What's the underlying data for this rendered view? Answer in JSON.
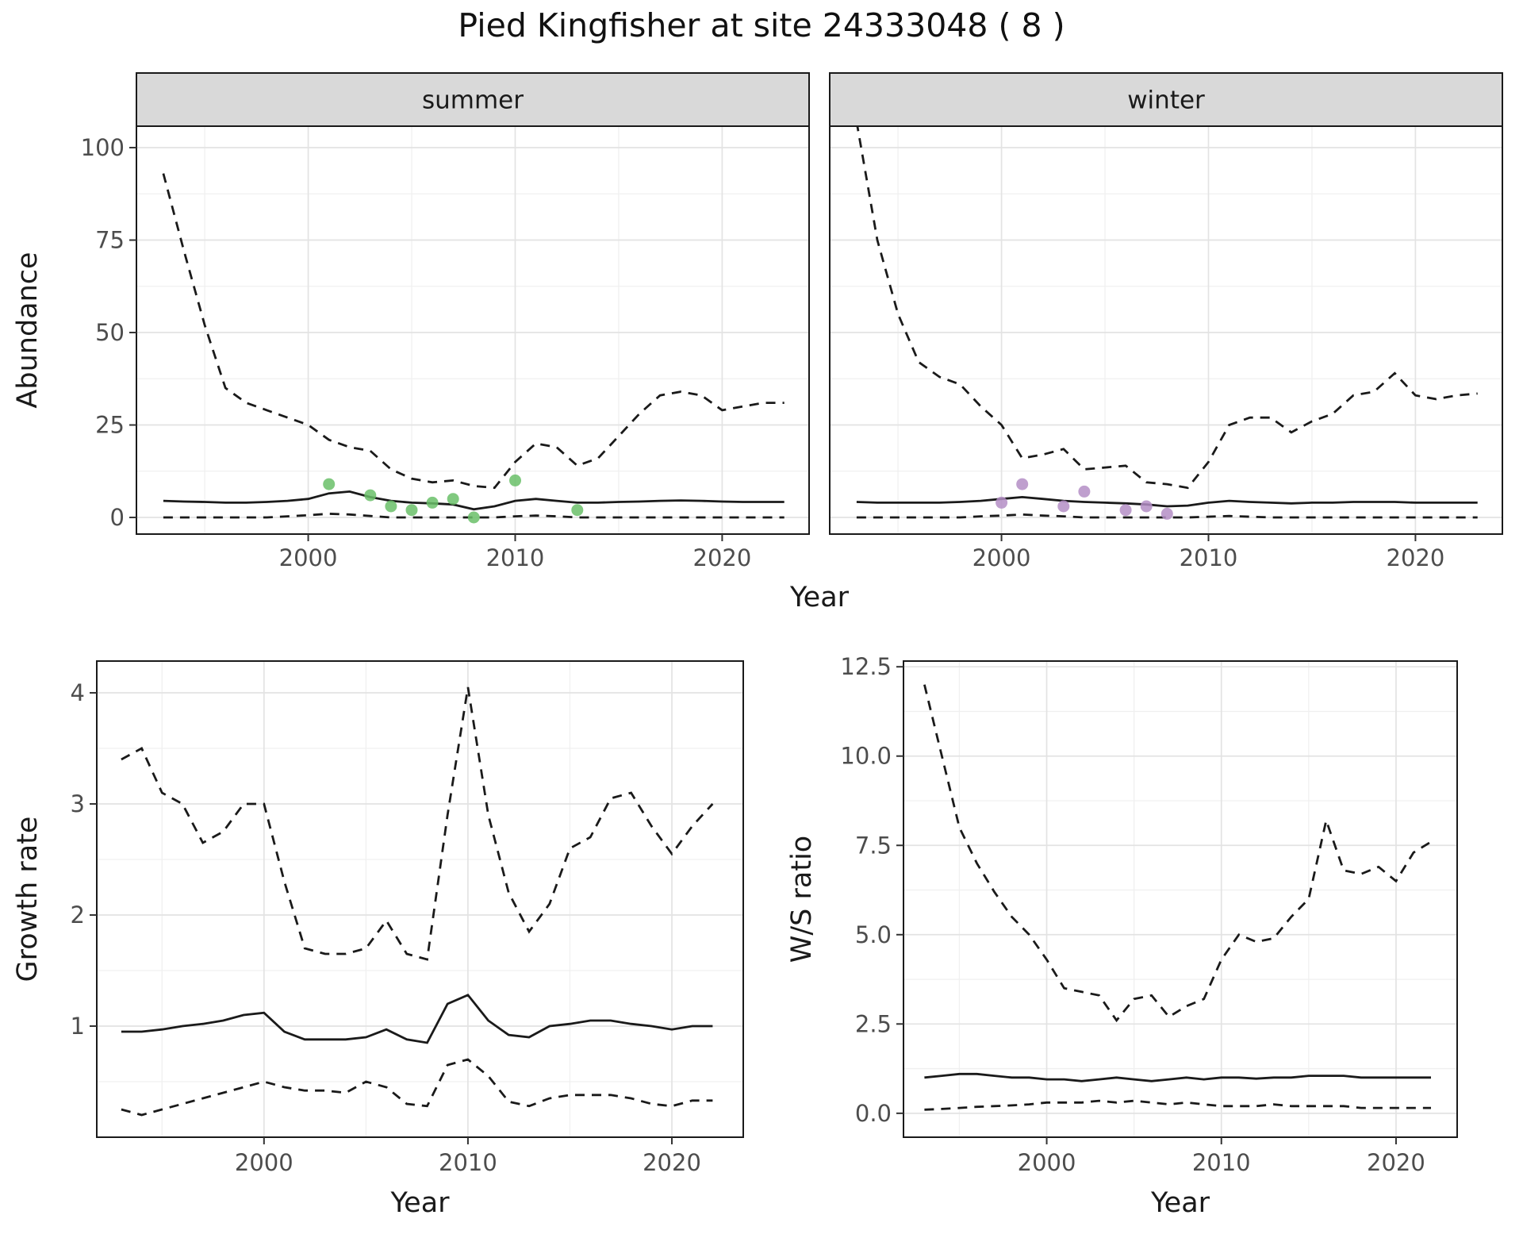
{
  "title": "Pied Kingfisher at site 24333048 ( 8 )",
  "colors": {
    "summer_points": "#6abf69",
    "winter_points": "#b48ec6",
    "line": "#1a1a1a",
    "strip_background": "#d9d9d9",
    "grid_major": "#e3e3e3",
    "grid_minor": "#f0f0f0",
    "tick_text": "#4d4d4d"
  },
  "chart_data": [
    {
      "id": "abundance_by_season",
      "type": "line",
      "xlabel": "Year",
      "ylabel": "Abundance",
      "x_ticks": [
        "2000",
        "2010",
        "2020"
      ],
      "x_tick_values": [
        2000,
        2010,
        2020
      ],
      "y_ticks": [
        "0",
        "25",
        "50",
        "75",
        "100"
      ],
      "y_tick_values": [
        0,
        25,
        50,
        75,
        100
      ],
      "xlim": [
        1991.7,
        2024.2
      ],
      "ylim": [
        -4.5,
        105.8
      ],
      "x": [
        1993,
        1994,
        1995,
        1996,
        1997,
        1998,
        1999,
        2000,
        2001,
        2002,
        2003,
        2004,
        2005,
        2006,
        2007,
        2008,
        2009,
        2010,
        2011,
        2012,
        2013,
        2014,
        2015,
        2016,
        2017,
        2018,
        2019,
        2020,
        2021,
        2022,
        2023
      ],
      "panels": [
        {
          "facet": "summer",
          "point_color": "#6abf69",
          "upper": [
            93,
            72,
            52,
            35,
            31,
            29,
            27,
            25,
            21,
            19,
            18,
            13,
            10.5,
            9.5,
            10,
            8.5,
            8,
            15,
            20,
            19,
            14,
            16,
            22,
            28,
            33,
            34,
            33,
            29,
            30,
            31,
            31
          ],
          "median": [
            4.5,
            4.3,
            4.2,
            4.0,
            4.0,
            4.2,
            4.5,
            5.0,
            6.5,
            7.0,
            5.5,
            4.5,
            4.0,
            3.8,
            3.5,
            2.2,
            3.0,
            4.5,
            5.0,
            4.5,
            4.0,
            4.0,
            4.2,
            4.3,
            4.5,
            4.6,
            4.5,
            4.3,
            4.2,
            4.2,
            4.2
          ],
          "lower": [
            0,
            0,
            0,
            0,
            0,
            0,
            0.3,
            0.6,
            1,
            0.8,
            0.4,
            0,
            0,
            0,
            0,
            0,
            0,
            0.3,
            0.5,
            0.3,
            0,
            0,
            0,
            0,
            0,
            0,
            0,
            0,
            0,
            0,
            0
          ],
          "points": [
            [
              2001,
              9
            ],
            [
              2003,
              6
            ],
            [
              2004,
              3
            ],
            [
              2005,
              2
            ],
            [
              2006,
              4
            ],
            [
              2007,
              5
            ],
            [
              2008,
              0
            ],
            [
              2010,
              10
            ],
            [
              2013,
              2
            ]
          ]
        },
        {
          "facet": "winter",
          "point_color": "#b48ec6",
          "upper": [
            107,
            75,
            55,
            42,
            38,
            36,
            30,
            25,
            16,
            17,
            18.5,
            13,
            13.5,
            14,
            9.5,
            9,
            8,
            15,
            25,
            27,
            27,
            23,
            26,
            28,
            33,
            34,
            39,
            33,
            32,
            33,
            33.5
          ],
          "median": [
            4.2,
            4.0,
            4.0,
            4.0,
            4.0,
            4.2,
            4.5,
            5.0,
            5.5,
            5.0,
            4.5,
            4.2,
            4.0,
            3.8,
            3.5,
            3.0,
            3.2,
            4.0,
            4.5,
            4.2,
            4.0,
            3.8,
            4.0,
            4.0,
            4.2,
            4.2,
            4.2,
            4.0,
            4.0,
            4.0,
            4.0
          ],
          "lower": [
            0,
            0,
            0,
            0,
            0,
            0,
            0.3,
            0.5,
            0.8,
            0.5,
            0.3,
            0,
            0,
            0,
            0,
            0,
            0,
            0.2,
            0.4,
            0.2,
            0,
            0,
            0,
            0,
            0,
            0,
            0,
            0,
            0,
            0,
            0
          ],
          "points": [
            [
              2000,
              4
            ],
            [
              2001,
              9
            ],
            [
              2003,
              3
            ],
            [
              2004,
              7
            ],
            [
              2006,
              2
            ],
            [
              2007,
              3
            ],
            [
              2008,
              1
            ]
          ]
        }
      ]
    },
    {
      "id": "growth_rate",
      "type": "line",
      "xlabel": "Year",
      "ylabel": "Growth rate",
      "x_ticks": [
        "2000",
        "2010",
        "2020"
      ],
      "x_tick_values": [
        2000,
        2010,
        2020
      ],
      "y_ticks": [
        "1",
        "2",
        "3",
        "4"
      ],
      "y_tick_values": [
        1,
        2,
        3,
        4
      ],
      "xlim": [
        1991.8,
        2023.5
      ],
      "ylim": [
        0,
        4.286
      ],
      "x": [
        1993,
        1994,
        1995,
        1996,
        1997,
        1998,
        1999,
        2000,
        2001,
        2002,
        2003,
        2004,
        2005,
        2006,
        2007,
        2008,
        2009,
        2010,
        2011,
        2012,
        2013,
        2014,
        2015,
        2016,
        2017,
        2018,
        2019,
        2020,
        2021,
        2022
      ],
      "panels": [
        {
          "facet": null,
          "point_color": null,
          "upper": [
            3.4,
            3.5,
            3.1,
            3.0,
            2.65,
            2.75,
            3.0,
            3.0,
            2.3,
            1.7,
            1.65,
            1.65,
            1.7,
            1.95,
            1.65,
            1.6,
            2.9,
            4.05,
            2.9,
            2.2,
            1.85,
            2.1,
            2.6,
            2.7,
            3.05,
            3.1,
            2.8,
            2.55,
            2.8,
            3.0
          ],
          "median": [
            0.95,
            0.95,
            0.97,
            1.0,
            1.02,
            1.05,
            1.1,
            1.12,
            0.95,
            0.88,
            0.88,
            0.88,
            0.9,
            0.97,
            0.88,
            0.85,
            1.2,
            1.28,
            1.05,
            0.92,
            0.9,
            1.0,
            1.02,
            1.05,
            1.05,
            1.02,
            1.0,
            0.97,
            1.0,
            1.0
          ],
          "lower": [
            0.25,
            0.2,
            0.25,
            0.3,
            0.35,
            0.4,
            0.45,
            0.5,
            0.45,
            0.42,
            0.42,
            0.4,
            0.5,
            0.45,
            0.3,
            0.28,
            0.65,
            0.7,
            0.55,
            0.32,
            0.28,
            0.35,
            0.38,
            0.38,
            0.38,
            0.35,
            0.3,
            0.28,
            0.33,
            0.33
          ],
          "points": []
        }
      ]
    },
    {
      "id": "ws_ratio",
      "type": "line",
      "xlabel": "Year",
      "ylabel": "W/S ratio",
      "x_ticks": [
        "2000",
        "2010",
        "2020"
      ],
      "x_tick_values": [
        2000,
        2010,
        2020
      ],
      "y_ticks": [
        "0.0",
        "2.5",
        "5.0",
        "7.5",
        "10.0",
        "12.5"
      ],
      "y_tick_values": [
        0,
        2.5,
        5,
        7.5,
        10,
        12.5
      ],
      "xlim": [
        1991.8,
        2023.5
      ],
      "ylim": [
        -0.67,
        12.66
      ],
      "x": [
        1993,
        1994,
        1995,
        1996,
        1997,
        1998,
        1999,
        2000,
        2001,
        2002,
        2003,
        2004,
        2005,
        2006,
        2007,
        2008,
        2009,
        2010,
        2011,
        2012,
        2013,
        2014,
        2015,
        2016,
        2017,
        2018,
        2019,
        2020,
        2021,
        2022
      ],
      "panels": [
        {
          "facet": null,
          "point_color": null,
          "upper": [
            12.0,
            10.0,
            8.0,
            7.0,
            6.2,
            5.5,
            5.0,
            4.3,
            3.5,
            3.4,
            3.3,
            2.6,
            3.2,
            3.3,
            2.7,
            3.0,
            3.2,
            4.3,
            5.0,
            4.8,
            4.9,
            5.5,
            6.0,
            8.2,
            6.8,
            6.7,
            6.9,
            6.5,
            7.3,
            7.6
          ],
          "median": [
            1.0,
            1.05,
            1.1,
            1.1,
            1.05,
            1.0,
            1.0,
            0.95,
            0.95,
            0.9,
            0.95,
            1.0,
            0.95,
            0.9,
            0.95,
            1.0,
            0.95,
            1.0,
            1.0,
            0.97,
            1.0,
            1.0,
            1.05,
            1.05,
            1.05,
            1.0,
            1.0,
            1.0,
            1.0,
            1.0
          ],
          "lower": [
            0.1,
            0.12,
            0.15,
            0.18,
            0.2,
            0.22,
            0.25,
            0.3,
            0.3,
            0.3,
            0.35,
            0.3,
            0.35,
            0.3,
            0.25,
            0.3,
            0.25,
            0.2,
            0.2,
            0.2,
            0.25,
            0.2,
            0.2,
            0.2,
            0.2,
            0.15,
            0.15,
            0.15,
            0.15,
            0.15
          ],
          "points": []
        }
      ]
    }
  ]
}
